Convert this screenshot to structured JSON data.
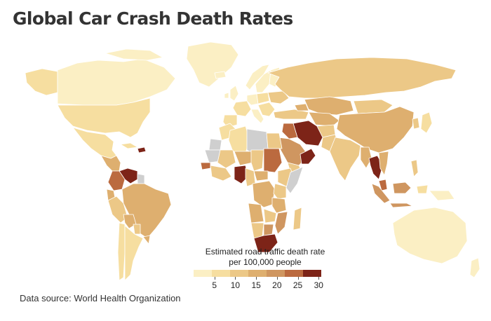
{
  "title": "Global Car Crash Death Rates",
  "source": "Data source: World Health Organization",
  "legend": {
    "title_line1": "Estimated road traffic death rate",
    "title_line2": "per 100,000 people",
    "colors": [
      "#fbefc4",
      "#f6dea0",
      "#ecc887",
      "#deaf6f",
      "#cf9660",
      "#bb6a3f",
      "#7d2418"
    ],
    "ticks": [
      "5",
      "10",
      "15",
      "20",
      "25",
      "30"
    ]
  },
  "colors": {
    "no_data": "#cfcfcf",
    "ocean": "#ffffff"
  }
}
